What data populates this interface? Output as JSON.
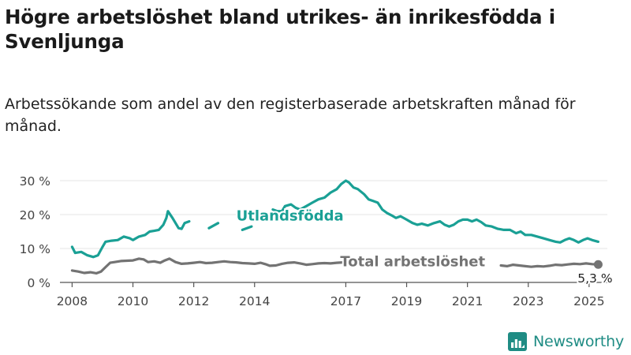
{
  "title": "Högre arbetslöshet bland utrikes- än inrikesfödda i Svenljunga",
  "subtitle": "Arbetssökande som andel av den registerbaserade arbetskraften månad för månad.",
  "brand": "Newsworthy",
  "colors": {
    "foreign": "#1aa095",
    "total": "#737373",
    "axis": "#444444",
    "brand": "#1f8c84"
  },
  "chart_data": {
    "type": "line",
    "xlim": [
      2007.6,
      2025.6
    ],
    "ylim": [
      0,
      30
    ],
    "y_ticks": [
      {
        "value": 0,
        "label": "0 %"
      },
      {
        "value": 10,
        "label": "10 %"
      },
      {
        "value": 20,
        "label": "20 %"
      },
      {
        "value": 30,
        "label": "30 %"
      }
    ],
    "x_ticks": [
      {
        "value": 2008,
        "label": "2008"
      },
      {
        "value": 2010,
        "label": "2010"
      },
      {
        "value": 2012,
        "label": "2012"
      },
      {
        "value": 2014,
        "label": "2014"
      },
      {
        "value": 2017,
        "label": "2017"
      },
      {
        "value": 2019,
        "label": "2019"
      },
      {
        "value": 2021,
        "label": "2021"
      },
      {
        "value": 2023,
        "label": "2023"
      },
      {
        "value": 2025,
        "label": "2025"
      }
    ],
    "series": [
      {
        "name": "Utlandsfödda",
        "color": "#1aa095",
        "points": [
          [
            2008.0,
            10.5
          ],
          [
            2008.1,
            8.7
          ],
          [
            2008.3,
            9.0
          ],
          [
            2008.5,
            8.0
          ],
          [
            2008.7,
            7.5
          ],
          [
            2008.85,
            8.0
          ],
          [
            2009.0,
            10.5
          ],
          [
            2009.1,
            12.0
          ],
          [
            2009.3,
            12.3
          ],
          [
            2009.5,
            12.5
          ],
          [
            2009.7,
            13.5
          ],
          [
            2009.9,
            13.0
          ],
          [
            2010.0,
            12.5
          ],
          [
            2010.2,
            13.5
          ],
          [
            2010.4,
            14.0
          ],
          [
            2010.55,
            15.0
          ],
          [
            2010.7,
            15.2
          ],
          [
            2010.85,
            15.5
          ],
          [
            2011.0,
            17.0
          ],
          [
            2011.1,
            19.0
          ],
          [
            2011.15,
            21.0
          ],
          [
            2011.3,
            19.0
          ],
          [
            2011.5,
            16.0
          ],
          [
            2011.6,
            15.8
          ],
          [
            2011.7,
            17.5
          ],
          [
            2011.85,
            18.0
          ],
          null,
          [
            2012.5,
            16.0
          ],
          [
            2012.8,
            17.5
          ],
          null,
          [
            2013.6,
            15.5
          ],
          [
            2013.9,
            16.5
          ],
          null,
          [
            2014.6,
            21.5
          ],
          [
            2014.75,
            21.0
          ],
          [
            2014.9,
            21.0
          ],
          [
            2015.0,
            22.5
          ],
          [
            2015.2,
            23.0
          ],
          [
            2015.35,
            22.0
          ],
          [
            2015.5,
            21.5
          ],
          [
            2015.7,
            22.5
          ],
          [
            2015.9,
            23.5
          ],
          [
            2016.1,
            24.5
          ],
          [
            2016.3,
            25.0
          ],
          [
            2016.5,
            26.5
          ],
          [
            2016.7,
            27.5
          ],
          [
            2016.85,
            29.0
          ],
          [
            2017.0,
            30.0
          ],
          [
            2017.1,
            29.5
          ],
          [
            2017.25,
            28.0
          ],
          [
            2017.4,
            27.5
          ],
          [
            2017.6,
            26.0
          ],
          [
            2017.75,
            24.5
          ],
          [
            2017.9,
            24.0
          ],
          [
            2018.05,
            23.5
          ],
          [
            2018.2,
            21.5
          ],
          [
            2018.35,
            20.5
          ],
          [
            2018.5,
            19.8
          ],
          [
            2018.65,
            19.0
          ],
          [
            2018.8,
            19.5
          ],
          [
            2019.0,
            18.5
          ],
          [
            2019.2,
            17.5
          ],
          [
            2019.35,
            17.0
          ],
          [
            2019.5,
            17.3
          ],
          [
            2019.7,
            16.8
          ],
          [
            2019.9,
            17.5
          ],
          [
            2020.1,
            18.0
          ],
          [
            2020.25,
            17.0
          ],
          [
            2020.4,
            16.5
          ],
          [
            2020.55,
            17.0
          ],
          [
            2020.7,
            18.0
          ],
          [
            2020.85,
            18.5
          ],
          [
            2021.0,
            18.5
          ],
          [
            2021.15,
            18.0
          ],
          [
            2021.3,
            18.5
          ],
          [
            2021.45,
            17.8
          ],
          [
            2021.6,
            16.8
          ],
          [
            2021.8,
            16.5
          ],
          [
            2022.0,
            15.8
          ],
          [
            2022.2,
            15.5
          ],
          [
            2022.4,
            15.5
          ],
          [
            2022.6,
            14.5
          ],
          [
            2022.75,
            15.0
          ],
          [
            2022.9,
            14.0
          ],
          [
            2023.1,
            14.0
          ],
          [
            2023.3,
            13.5
          ],
          [
            2023.5,
            13.0
          ],
          [
            2023.7,
            12.5
          ],
          [
            2023.9,
            12.0
          ],
          [
            2024.05,
            11.8
          ],
          [
            2024.2,
            12.5
          ],
          [
            2024.35,
            13.0
          ],
          [
            2024.5,
            12.5
          ],
          [
            2024.65,
            11.8
          ],
          [
            2024.8,
            12.5
          ],
          [
            2024.95,
            13.0
          ],
          [
            2025.1,
            12.5
          ],
          [
            2025.3,
            12.0
          ]
        ]
      },
      {
        "name": "Total arbetslöshet",
        "color": "#737373",
        "points": [
          [
            2008.0,
            3.5
          ],
          [
            2008.2,
            3.2
          ],
          [
            2008.4,
            2.8
          ],
          [
            2008.6,
            3.0
          ],
          [
            2008.8,
            2.7
          ],
          [
            2008.95,
            3.2
          ],
          [
            2009.1,
            4.5
          ],
          [
            2009.25,
            5.8
          ],
          [
            2009.4,
            6.0
          ],
          [
            2009.6,
            6.3
          ],
          [
            2009.8,
            6.4
          ],
          [
            2010.0,
            6.5
          ],
          [
            2010.2,
            7.0
          ],
          [
            2010.35,
            6.8
          ],
          [
            2010.5,
            6.0
          ],
          [
            2010.7,
            6.2
          ],
          [
            2010.9,
            5.8
          ],
          [
            2011.05,
            6.5
          ],
          [
            2011.2,
            7.0
          ],
          [
            2011.4,
            6.0
          ],
          [
            2011.6,
            5.5
          ],
          [
            2011.8,
            5.6
          ],
          [
            2012.0,
            5.8
          ],
          [
            2012.2,
            6.0
          ],
          [
            2012.4,
            5.7
          ],
          [
            2012.6,
            5.8
          ],
          [
            2012.8,
            6.0
          ],
          [
            2013.0,
            6.2
          ],
          [
            2013.2,
            6.0
          ],
          [
            2013.4,
            5.9
          ],
          [
            2013.6,
            5.7
          ],
          [
            2013.8,
            5.6
          ],
          [
            2014.0,
            5.5
          ],
          [
            2014.2,
            5.8
          ],
          [
            2014.35,
            5.4
          ],
          [
            2014.5,
            4.9
          ],
          [
            2014.7,
            5.0
          ],
          [
            2014.9,
            5.5
          ],
          [
            2015.1,
            5.8
          ],
          [
            2015.3,
            5.9
          ],
          [
            2015.5,
            5.6
          ],
          [
            2015.7,
            5.2
          ],
          [
            2015.9,
            5.4
          ],
          [
            2016.1,
            5.6
          ],
          [
            2016.3,
            5.7
          ],
          [
            2016.5,
            5.6
          ],
          [
            2016.7,
            5.8
          ],
          [
            2016.9,
            5.9
          ],
          null,
          [
            2022.1,
            5.0
          ],
          [
            2022.3,
            4.8
          ],
          [
            2022.5,
            5.2
          ],
          [
            2022.7,
            5.0
          ],
          [
            2022.9,
            4.8
          ],
          [
            2023.1,
            4.6
          ],
          [
            2023.3,
            4.8
          ],
          [
            2023.5,
            4.7
          ],
          [
            2023.7,
            4.9
          ],
          [
            2023.9,
            5.2
          ],
          [
            2024.1,
            5.1
          ],
          [
            2024.3,
            5.3
          ],
          [
            2024.5,
            5.5
          ],
          [
            2024.7,
            5.4
          ],
          [
            2024.9,
            5.6
          ],
          [
            2025.1,
            5.4
          ],
          [
            2025.3,
            5.3
          ]
        ]
      }
    ],
    "labels": {
      "foreign": {
        "text": "Utlandsfödda",
        "x": 2013.4,
        "y": 18.2
      },
      "total": {
        "text": "Total arbetslöshet",
        "x": 2019.2,
        "y": 4.8
      },
      "last_value": {
        "text": "5,3 %",
        "x": 2025.3,
        "y": 5.3
      }
    }
  }
}
